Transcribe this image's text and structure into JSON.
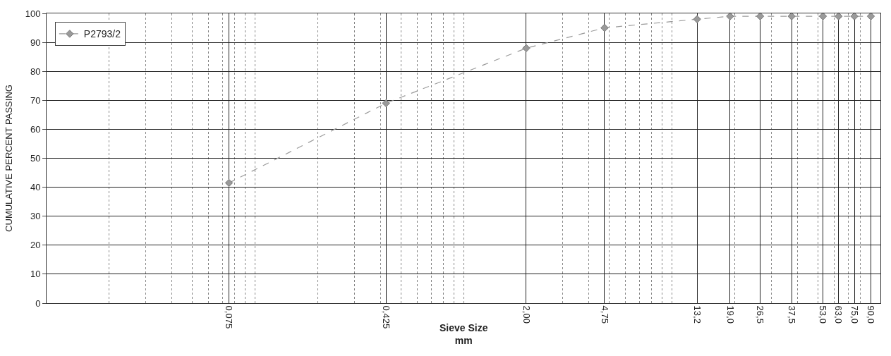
{
  "chart_data": {
    "type": "line",
    "xlabel": "Sieve Size\nmm",
    "ylabel": "CUMULATIVE PERCENT PASSING",
    "x": [
      0.075,
      0.425,
      2.0,
      4.75,
      13.2,
      19.0,
      26.5,
      37.5,
      53.0,
      63.0,
      75.0,
      90.0
    ],
    "series": [
      {
        "name": "P2793/2",
        "color": "#9a9a9a",
        "values": [
          41.5,
          69,
          88,
          95,
          98,
          99,
          99,
          99,
          99,
          99,
          99,
          99
        ]
      }
    ],
    "log": "x",
    "xlim": [
      0.01,
      100
    ],
    "xticks": [
      {
        "value": 0.075,
        "label": "0,075"
      },
      {
        "value": 0.425,
        "label": "0,425"
      },
      {
        "value": 2.0,
        "label": "2,00"
      },
      {
        "value": 4.75,
        "label": "4,75"
      },
      {
        "value": 13.2,
        "label": "13,2"
      },
      {
        "value": 19.0,
        "label": "19,0"
      },
      {
        "value": 26.5,
        "label": "26,5"
      },
      {
        "value": 37.5,
        "label": "37,5"
      },
      {
        "value": 53.0,
        "label": "53,0"
      },
      {
        "value": 63.0,
        "label": "63,0"
      },
      {
        "value": 75.0,
        "label": "75,0"
      },
      {
        "value": 90.0,
        "label": "90,0"
      }
    ],
    "ylim": [
      0,
      100
    ],
    "yticks": [
      0,
      10,
      20,
      30,
      40,
      50,
      60,
      70,
      80,
      90,
      100
    ],
    "grid": true,
    "legend": "top left",
    "marker": "diamond",
    "line_style": "dashed"
  }
}
